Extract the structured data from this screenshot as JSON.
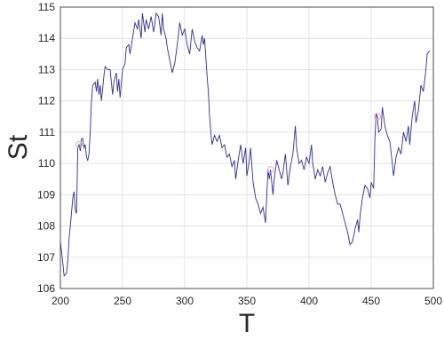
{
  "chart_data": {
    "type": "line",
    "x_label": "T",
    "y_label": "St",
    "xlim": [
      200,
      500
    ],
    "xticks": [
      200,
      250,
      300,
      350,
      400,
      450,
      500
    ],
    "ylim": [
      106,
      115
    ],
    "yticks": [
      106,
      107,
      108,
      109,
      110,
      111,
      112,
      113,
      114,
      115
    ],
    "grid": true,
    "x": [
      200,
      202,
      203,
      205,
      206,
      207,
      208,
      210,
      211,
      212,
      213,
      214,
      215,
      216,
      217,
      218,
      219,
      220,
      221,
      222,
      223,
      224,
      225,
      226,
      228,
      229,
      230,
      231,
      232,
      233,
      235,
      236,
      238,
      240,
      241,
      242,
      243,
      245,
      246,
      247,
      248,
      250,
      252,
      253,
      255,
      256,
      258,
      260,
      262,
      263,
      265,
      266,
      268,
      269,
      271,
      273,
      275,
      277,
      279,
      281,
      282,
      283,
      285,
      286,
      288,
      290,
      292,
      294,
      296,
      298,
      300,
      302,
      304,
      306,
      308,
      310,
      312,
      314,
      315,
      316,
      317,
      318,
      319,
      320,
      321,
      322,
      324,
      326,
      328,
      330,
      332,
      334,
      336,
      338,
      340,
      341,
      343,
      345,
      347,
      349,
      350,
      352,
      353,
      355,
      357,
      359,
      361,
      363,
      365,
      367,
      368,
      369,
      371,
      372,
      374,
      376,
      378,
      379,
      381,
      383,
      385,
      387,
      389,
      390,
      392,
      394,
      396,
      398,
      400,
      402,
      403,
      405,
      407,
      409,
      411,
      413,
      415,
      417,
      419,
      421,
      423,
      425,
      427,
      429,
      431,
      433,
      435,
      437,
      439,
      440,
      441,
      443,
      445,
      447,
      449,
      450,
      452,
      453,
      454,
      455,
      456,
      458,
      459,
      461,
      463,
      465,
      467,
      468,
      470,
      472,
      474,
      476,
      478,
      480,
      481,
      483,
      485,
      486,
      488,
      490,
      492,
      494,
      495,
      497
    ],
    "series": [
      {
        "color": "#2e2f8f",
        "values": [
          107.5,
          106.8,
          106.4,
          106.5,
          106.9,
          107.6,
          108.0,
          108.9,
          109.1,
          108.5,
          108.4,
          110.5,
          110.6,
          110.4,
          110.8,
          110.8,
          110.5,
          110.6,
          110.2,
          110.1,
          110.3,
          111.0,
          112.0,
          112.5,
          112.6,
          112.3,
          112.7,
          112.2,
          112.5,
          112.0,
          112.8,
          113.1,
          113.0,
          113.0,
          112.6,
          112.2,
          112.6,
          112.9,
          112.3,
          112.7,
          112.1,
          113.0,
          113.2,
          113.7,
          113.8,
          113.5,
          114.0,
          114.5,
          114.3,
          114.6,
          114.0,
          114.8,
          114.2,
          114.6,
          114.3,
          114.7,
          114.2,
          114.8,
          114.7,
          114.1,
          114.8,
          114.3,
          114.0,
          113.7,
          113.3,
          112.9,
          113.2,
          113.8,
          114.5,
          114.1,
          114.3,
          113.8,
          113.5,
          114.3,
          113.9,
          113.7,
          113.6,
          114.1,
          113.8,
          114.0,
          113.4,
          112.8,
          112.3,
          111.5,
          111.0,
          110.6,
          110.9,
          110.7,
          110.9,
          110.5,
          110.6,
          110.2,
          110.3,
          109.9,
          110.1,
          109.5,
          110.1,
          110.6,
          110.0,
          110.5,
          109.6,
          110.1,
          110.5,
          109.4,
          108.9,
          108.7,
          108.4,
          108.6,
          108.1,
          109.8,
          109.5,
          109.8,
          109.0,
          109.5,
          110.1,
          109.8,
          109.5,
          109.7,
          110.3,
          109.3,
          109.9,
          110.3,
          111.2,
          110.5,
          110.0,
          110.1,
          109.8,
          110.2,
          110.0,
          110.6,
          110.0,
          109.5,
          109.8,
          109.6,
          109.9,
          109.4,
          109.7,
          109.9,
          109.4,
          109.0,
          108.7,
          108.7,
          108.4,
          108.1,
          107.8,
          107.4,
          107.5,
          107.9,
          108.2,
          107.8,
          108.3,
          108.9,
          109.3,
          109.2,
          108.9,
          109.4,
          109.2,
          110.8,
          111.6,
          111.5,
          111.0,
          111.1,
          111.8,
          111.2,
          110.9,
          110.7,
          110.0,
          109.6,
          110.2,
          110.5,
          110.3,
          111.0,
          110.7,
          111.2,
          110.6,
          111.5,
          112.0,
          111.3,
          111.7,
          112.5,
          112.3,
          113.0,
          113.5,
          113.6
        ]
      }
    ],
    "markers": {
      "color": "#f0a0c0",
      "x": [
        215,
        369,
        455
      ],
      "values": [
        110.6,
        109.8,
        111.5
      ]
    }
  }
}
